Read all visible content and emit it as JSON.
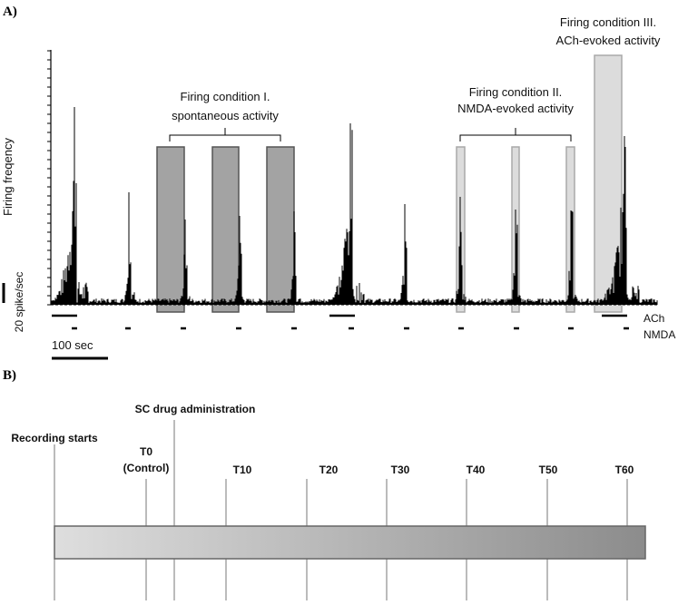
{
  "panels": {
    "a": "A)",
    "b": "B)"
  },
  "trace": {
    "ylabel": "Firing freqency",
    "scale_bar_label": "20 spike/sec",
    "time_bar_label": "100 sec",
    "ach_label": "ACh",
    "nmda_label": "NMDA"
  },
  "conditions": [
    {
      "line1": "Firing condition I.",
      "line2": "spontaneous activity"
    },
    {
      "line1": "Firing condition II.",
      "line2": "NMDA-evoked activity"
    },
    {
      "line1": "Firing condition III.",
      "line2": "ACh-evoked activity"
    }
  ],
  "timeline": {
    "recording_start": "Recording starts",
    "drug_admin": "SC drug administration",
    "t0_line1": "T0",
    "t0_line2": "(Control)",
    "ticks": [
      "T10",
      "T20",
      "T30",
      "T40",
      "T50",
      "T60"
    ]
  },
  "colors": {
    "dark_box": "#a3a3a3",
    "light_box": "#dcdcdc",
    "gradient_start": "#dedede",
    "gradient_end": "#8c8c8c",
    "trace": "#000000"
  }
}
